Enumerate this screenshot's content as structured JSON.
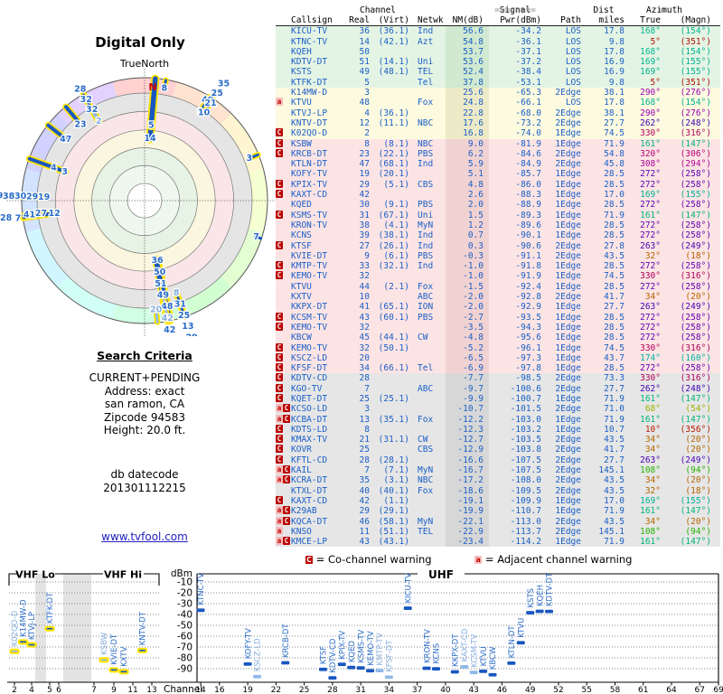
{
  "title": "Digital Only",
  "polar": {
    "north_label": "TrueNorth",
    "n_marker": "N"
  },
  "search_criteria": {
    "heading": "Search Criteria",
    "lines": [
      "CURRENT+PENDING",
      "Address: exact",
      "san ramon, CA",
      "Zipcode 94583",
      "Height: 20.0 ft."
    ],
    "db_label": "db datecode",
    "db_value": "201301112215"
  },
  "link": {
    "text": "www.tvfool.com"
  },
  "legend": {
    "c_symbol": "C",
    "c_text": "= Co-channel warning",
    "a_symbol": "a",
    "a_text": "= Adjacent channel warning"
  },
  "colors": {
    "data_blue": "#1a5fc8",
    "light_blue": "#8fb9e8",
    "bar_blue": "#1857c0",
    "highlight_yellow": "#ffe400",
    "warn_red": "#bb0000",
    "warn_pink": "#f6bcbc",
    "tier_green": "#e4f4e4",
    "tier_yellow": "#fcfadf",
    "tier_pink": "#fce4e4",
    "tier_gray": "#e6e6e6",
    "azimuth_color_rule": "hsl(azimuth_true,100%,35%)"
  },
  "table": {
    "group_headers": {
      "eq2": "==",
      "eq8": "========",
      "channel": "Channel",
      "signal": "Signal",
      "dist": "Dist",
      "azimuth": "Azimuth"
    },
    "col_headers": [
      "Callsign",
      "Real",
      "(Virt)",
      "Netwk",
      "NM(dB)",
      "Pwr(dBm)",
      "Path",
      "miles",
      "True",
      "(Magn)"
    ],
    "row_fields": [
      "callsign",
      "real_ch",
      "virtual_ch",
      "network",
      "nm_db",
      "pwr_dbm",
      "path",
      "dist_miles",
      "azimuth_true",
      "azimuth_magn",
      "warnings"
    ],
    "rows": [
      [
        "KICU-TV",
        36,
        "(36.1)",
        "Ind",
        56.6,
        -34.2,
        "LOS",
        17.8,
        168,
        154,
        ""
      ],
      [
        "KTNC-TV",
        14,
        "(42.1)",
        "Azt",
        54.8,
        -36.1,
        "LOS",
        9.8,
        5,
        351,
        ""
      ],
      [
        "KQEH",
        50,
        "",
        "",
        53.7,
        -37.1,
        "LOS",
        17.8,
        168,
        154,
        ""
      ],
      [
        "KDTV-DT",
        51,
        "(14.1)",
        "Uni",
        53.6,
        -37.2,
        "LOS",
        16.9,
        169,
        155,
        ""
      ],
      [
        "KSTS",
        49,
        "(48.1)",
        "TEL",
        52.4,
        -38.4,
        "LOS",
        16.9,
        169,
        155,
        ""
      ],
      [
        "KTFK-DT",
        5,
        "",
        "Tel",
        37.8,
        -53.1,
        "LOS",
        9.8,
        5,
        351,
        ""
      ],
      [
        "K14MW-D",
        3,
        "",
        "",
        25.6,
        -65.3,
        "2Edge",
        38.1,
        290,
        276,
        ""
      ],
      [
        "KTVU",
        48,
        "",
        "Fox",
        24.8,
        -66.1,
        "LOS",
        17.8,
        168,
        154,
        "a"
      ],
      [
        "KTVJ-LP",
        4,
        "(36.1)",
        "",
        22.8,
        -68.0,
        "2Edge",
        38.1,
        290,
        276,
        ""
      ],
      [
        "KNTV-DT",
        12,
        "(11.1)",
        "NBC",
        17.6,
        -73.2,
        "2Edge",
        27.7,
        262,
        248,
        ""
      ],
      [
        "K02QO-D",
        2,
        "",
        "",
        16.8,
        -74.0,
        "1Edge",
        74.5,
        330,
        316,
        "C"
      ],
      [
        "KSBW",
        8,
        "(8.1)",
        "NBC",
        9.0,
        -81.9,
        "1Edge",
        71.9,
        161,
        147,
        "C"
      ],
      [
        "KRCB-DT",
        23,
        "(22.1)",
        "PBS",
        6.2,
        -84.6,
        "2Edge",
        54.8,
        320,
        306,
        "C"
      ],
      [
        "KTLN-DT",
        47,
        "(68.1)",
        "Ind",
        5.9,
        -84.9,
        "2Edge",
        45.8,
        308,
        294,
        ""
      ],
      [
        "KOFY-TV",
        19,
        "(20.1)",
        "",
        5.1,
        -85.7,
        "1Edge",
        28.5,
        272,
        258,
        ""
      ],
      [
        "KPIX-TV",
        29,
        "(5.1)",
        "CBS",
        4.8,
        -86.0,
        "1Edge",
        28.5,
        272,
        258,
        "C"
      ],
      [
        "KAXT-CD",
        42,
        "",
        "",
        2.6,
        -88.3,
        "1Edge",
        17.0,
        169,
        155,
        "C"
      ],
      [
        "KQED",
        30,
        "(9.1)",
        "PBS",
        2.0,
        -88.9,
        "1Edge",
        28.5,
        272,
        258,
        ""
      ],
      [
        "KSMS-TV",
        31,
        "(67.1)",
        "Uni",
        1.5,
        -89.3,
        "1Edge",
        71.9,
        161,
        147,
        "C"
      ],
      [
        "KRON-TV",
        38,
        "(4.1)",
        "MyN",
        1.2,
        -89.6,
        "1Edge",
        28.5,
        272,
        258,
        ""
      ],
      [
        "KCNS",
        39,
        "(38.1)",
        "Ind",
        0.7,
        -90.1,
        "1Edge",
        28.5,
        272,
        258,
        ""
      ],
      [
        "KTSF",
        27,
        "(26.1)",
        "Ind",
        0.3,
        -90.6,
        "2Edge",
        27.8,
        263,
        249,
        "C"
      ],
      [
        "KVIE-DT",
        9,
        "(6.1)",
        "PBS",
        -0.3,
        -91.1,
        "2Edge",
        43.5,
        32,
        18,
        ""
      ],
      [
        "KMTP-TV",
        33,
        "(32.1)",
        "Ind",
        -1.0,
        -91.8,
        "1Edge",
        28.5,
        272,
        258,
        "C"
      ],
      [
        "KEMO-TV",
        32,
        "",
        "",
        -1.0,
        -91.9,
        "1Edge",
        74.5,
        330,
        316,
        "C"
      ],
      [
        "KTVU",
        44,
        "(2.1)",
        "Fox",
        -1.5,
        -92.4,
        "1Edge",
        28.5,
        272,
        258,
        ""
      ],
      [
        "KXTV",
        10,
        "",
        "ABC",
        -2.0,
        -92.8,
        "2Edge",
        41.7,
        34,
        20,
        ""
      ],
      [
        "KKPX-DT",
        41,
        "(65.1)",
        "ION",
        -2.0,
        -92.9,
        "1Edge",
        27.7,
        263,
        249,
        ""
      ],
      [
        "KCSM-TV",
        43,
        "(60.1)",
        "PBS",
        -2.7,
        -93.5,
        "1Edge",
        28.5,
        272,
        258,
        "C"
      ],
      [
        "KEMO-TV",
        32,
        "",
        "",
        -3.5,
        -94.3,
        "1Edge",
        28.5,
        272,
        258,
        "C"
      ],
      [
        "KBCW",
        45,
        "(44.1)",
        "CW",
        -4.8,
        -95.6,
        "1Edge",
        28.5,
        272,
        258,
        ""
      ],
      [
        "KEMO-TV",
        32,
        "(50.1)",
        "",
        -5.2,
        -96.1,
        "1Edge",
        74.5,
        330,
        316,
        "C"
      ],
      [
        "KSCZ-LD",
        20,
        "",
        "",
        -6.5,
        -97.3,
        "1Edge",
        43.7,
        174,
        160,
        "C"
      ],
      [
        "KFSF-DT",
        34,
        "(66.1)",
        "Tel",
        -6.9,
        -97.8,
        "1Edge",
        28.5,
        272,
        258,
        "C"
      ],
      [
        "KDTV-CD",
        28,
        "",
        "",
        -7.7,
        -98.5,
        "2Edge",
        73.3,
        330,
        316,
        "C"
      ],
      [
        "KGO-TV",
        7,
        "",
        "ABC",
        -9.7,
        -100.6,
        "2Edge",
        27.7,
        262,
        248,
        "C"
      ],
      [
        "KQET-DT",
        25,
        "(25.1)",
        "",
        -9.9,
        -100.7,
        "1Edge",
        71.9,
        161,
        147,
        "C"
      ],
      [
        "KCSO-LD",
        3,
        "",
        "",
        -10.7,
        -101.5,
        "2Edge",
        71.0,
        68,
        54,
        "aC"
      ],
      [
        "KCBA-DT",
        13,
        "(35.1)",
        "Fox",
        -12.2,
        -103.0,
        "1Edge",
        71.9,
        161,
        147,
        "aC"
      ],
      [
        "KDTS-LD",
        8,
        "",
        "",
        -12.3,
        -103.2,
        "1Edge",
        10.7,
        10,
        356,
        "C"
      ],
      [
        "KMAX-TV",
        21,
        "(31.1)",
        "CW",
        -12.7,
        -103.5,
        "2Edge",
        43.5,
        34,
        20,
        "C"
      ],
      [
        "KOVR",
        25,
        "",
        "CBS",
        -12.9,
        -103.8,
        "2Edge",
        41.7,
        34,
        20,
        "C"
      ],
      [
        "KFTL-CD",
        28,
        "(28.1)",
        "",
        -16.6,
        -107.5,
        "2Edge",
        27.7,
        263,
        249,
        "C"
      ],
      [
        "KAIL",
        7,
        "(7.1)",
        "MyN",
        -16.7,
        -107.5,
        "2Edge",
        145.1,
        108,
        94,
        "aC"
      ],
      [
        "KCRA-DT",
        35,
        "(3.1)",
        "NBC",
        -17.2,
        -108.0,
        "2Edge",
        43.5,
        34,
        20,
        "aC"
      ],
      [
        "KTXL-DT",
        40,
        "(40.1)",
        "Fox",
        -18.6,
        -109.5,
        "2Edge",
        43.5,
        32,
        18,
        ""
      ],
      [
        "KAXT-CD",
        42,
        "(1.1)",
        "",
        -19.1,
        -109.9,
        "1Edge",
        17.0,
        169,
        155,
        "C"
      ],
      [
        "K29AB",
        29,
        "(29.1)",
        "",
        -19.9,
        -110.7,
        "1Edge",
        71.9,
        161,
        147,
        "aC"
      ],
      [
        "KQCA-DT",
        46,
        "(58.1)",
        "MyN",
        -22.1,
        -113.0,
        "2Edge",
        43.5,
        34,
        20,
        "aC"
      ],
      [
        "KNSO",
        11,
        "(51.1)",
        "TEL",
        -22.9,
        -113.7,
        "2Edge",
        145.1,
        108,
        94,
        "a"
      ],
      [
        "KMCE-LP",
        43,
        "(43.1)",
        "",
        -23.4,
        -114.2,
        "1Edge",
        71.9,
        161,
        147,
        "aC"
      ]
    ]
  },
  "chart_data": [
    {
      "type": "radial-bar",
      "title": "Digital Only",
      "north_label": "TrueNorth",
      "orientation": "azimuth degrees true, 0 = north",
      "bar_rule": "bar starts at outer rim, length proportional to NM(dB); label = real channel at bar tip",
      "station_fields": [
        "channel",
        "azimuth_true",
        "nm_db",
        "pending_light"
      ],
      "stations": [
        [
          36,
          168,
          56.6,
          0
        ],
        [
          14,
          5,
          54.8,
          0
        ],
        [
          50,
          168,
          53.7,
          0
        ],
        [
          51,
          169,
          53.6,
          0
        ],
        [
          49,
          169,
          52.4,
          0
        ],
        [
          5,
          5,
          37.8,
          0
        ],
        [
          3,
          290,
          25.6,
          0
        ],
        [
          48,
          168,
          24.8,
          0
        ],
        [
          4,
          290,
          22.8,
          0
        ],
        [
          12,
          262,
          17.6,
          0
        ],
        [
          2,
          330,
          16.8,
          1
        ],
        [
          8,
          161,
          9.0,
          1
        ],
        [
          23,
          320,
          6.2,
          0
        ],
        [
          47,
          308,
          5.9,
          0
        ],
        [
          19,
          272,
          5.1,
          0
        ],
        [
          29,
          272,
          4.8,
          0
        ],
        [
          42,
          169,
          2.6,
          1
        ],
        [
          30,
          272,
          2.0,
          0
        ],
        [
          31,
          161,
          1.5,
          0
        ],
        [
          38,
          272,
          1.2,
          0
        ],
        [
          39,
          272,
          0.7,
          0
        ],
        [
          27,
          263,
          0.3,
          0
        ],
        [
          9,
          32,
          -0.3,
          0
        ],
        [
          33,
          272,
          -1.0,
          1
        ],
        [
          32,
          330,
          -1.0,
          0
        ],
        [
          44,
          272,
          -1.5,
          0
        ],
        [
          10,
          34,
          -2.0,
          0
        ],
        [
          41,
          263,
          -2.0,
          0
        ],
        [
          43,
          272,
          -2.7,
          1
        ],
        [
          32,
          272,
          -3.5,
          0
        ],
        [
          45,
          272,
          -4.8,
          0
        ],
        [
          32,
          330,
          -5.2,
          0
        ],
        [
          20,
          174,
          -6.5,
          1
        ],
        [
          34,
          272,
          -6.9,
          1
        ],
        [
          28,
          330,
          -7.7,
          0
        ],
        [
          7,
          262,
          -9.7,
          0
        ],
        [
          25,
          161,
          -9.9,
          0
        ],
        [
          3,
          68,
          -10.7,
          0
        ],
        [
          13,
          161,
          -12.2,
          0
        ],
        [
          8,
          10,
          -12.3,
          0
        ],
        [
          21,
          34,
          -12.7,
          0
        ],
        [
          25,
          34,
          -12.9,
          0
        ],
        [
          28,
          263,
          -16.6,
          0
        ],
        [
          7,
          108,
          -16.7,
          0
        ],
        [
          35,
          34,
          -17.2,
          0
        ],
        [
          40,
          32,
          -18.6,
          0
        ],
        [
          42,
          169,
          -19.1,
          0
        ],
        [
          29,
          161,
          -19.9,
          0
        ],
        [
          46,
          34,
          -22.1,
          0
        ],
        [
          11,
          108,
          -22.9,
          0
        ],
        [
          43,
          161,
          -23.4,
          0
        ]
      ]
    },
    {
      "type": "scatter",
      "title": "Signal power vs channel",
      "ylabel": "dBm",
      "xlabel": "Channel",
      "ylim": [
        -100,
        -4
      ],
      "yticks": [
        -10,
        -20,
        -30,
        -40,
        -50,
        -60,
        -70,
        -80,
        -90
      ],
      "band_labels": [
        "VHF Lo",
        "VHF Hi",
        "UHF"
      ],
      "vhf_ticks": [
        2,
        4,
        5,
        6,
        7,
        9,
        11,
        13
      ],
      "uhf_ticks": [
        14,
        16,
        19,
        22,
        25,
        28,
        31,
        34,
        37,
        40,
        43,
        46,
        49,
        52,
        55,
        58,
        61,
        64,
        67,
        69
      ],
      "point_fields": [
        "callsign",
        "channel",
        "pwr_dbm",
        "pending_light"
      ],
      "points": [
        [
          "K02QO-D",
          2,
          -74.0,
          1
        ],
        [
          "K14MW-D",
          3,
          -65.3,
          0
        ],
        [
          "KTVJ-LP",
          4,
          -68.0,
          0
        ],
        [
          "KTFK-DT",
          5,
          -53.1,
          0
        ],
        [
          "KSBW",
          8,
          -81.9,
          1
        ],
        [
          "KVIE-DT",
          9,
          -91.1,
          0
        ],
        [
          "KXTV",
          10,
          -92.8,
          0
        ],
        [
          "KNTV-DT",
          12,
          -73.2,
          0
        ],
        [
          "KTNC-TV",
          14,
          -36.1,
          0
        ],
        [
          "KOFY-TV",
          19,
          -85.7,
          0
        ],
        [
          "KSCZ-LD",
          20,
          -97.3,
          1
        ],
        [
          "KRCB-DT",
          23,
          -84.6,
          0
        ],
        [
          "KTSF",
          27,
          -90.6,
          0
        ],
        [
          "KDTV-CD",
          28,
          -98.5,
          0
        ],
        [
          "KPIX-TV",
          29,
          -86.0,
          0
        ],
        [
          "KQED",
          30,
          -88.9,
          0
        ],
        [
          "KSMS-TV",
          31,
          -89.3,
          0
        ],
        [
          "KEMO-TV",
          32,
          -91.9,
          0
        ],
        [
          "KMTP-TV",
          33,
          -91.8,
          1
        ],
        [
          "KFSF-DT",
          34,
          -97.8,
          1
        ],
        [
          "KICU-TV",
          36,
          -34.2,
          0
        ],
        [
          "KRON-TV",
          38,
          -89.6,
          0
        ],
        [
          "KCNS",
          39,
          -90.1,
          0
        ],
        [
          "KKPX-DT",
          41,
          -92.9,
          0
        ],
        [
          "KAXT-CD",
          42,
          -88.3,
          1
        ],
        [
          "KCSM-TV",
          43,
          -93.5,
          1
        ],
        [
          "KTVU",
          44,
          -92.4,
          0
        ],
        [
          "KBCW",
          45,
          -95.6,
          0
        ],
        [
          "KTLN-DT",
          47,
          -84.9,
          0
        ],
        [
          "KTVU",
          48,
          -66.1,
          0
        ],
        [
          "KSTS",
          49,
          -38.4,
          0
        ],
        [
          "KQEH",
          50,
          -37.1,
          0
        ],
        [
          "KDTV-DT",
          51,
          -37.2,
          0
        ]
      ]
    }
  ]
}
